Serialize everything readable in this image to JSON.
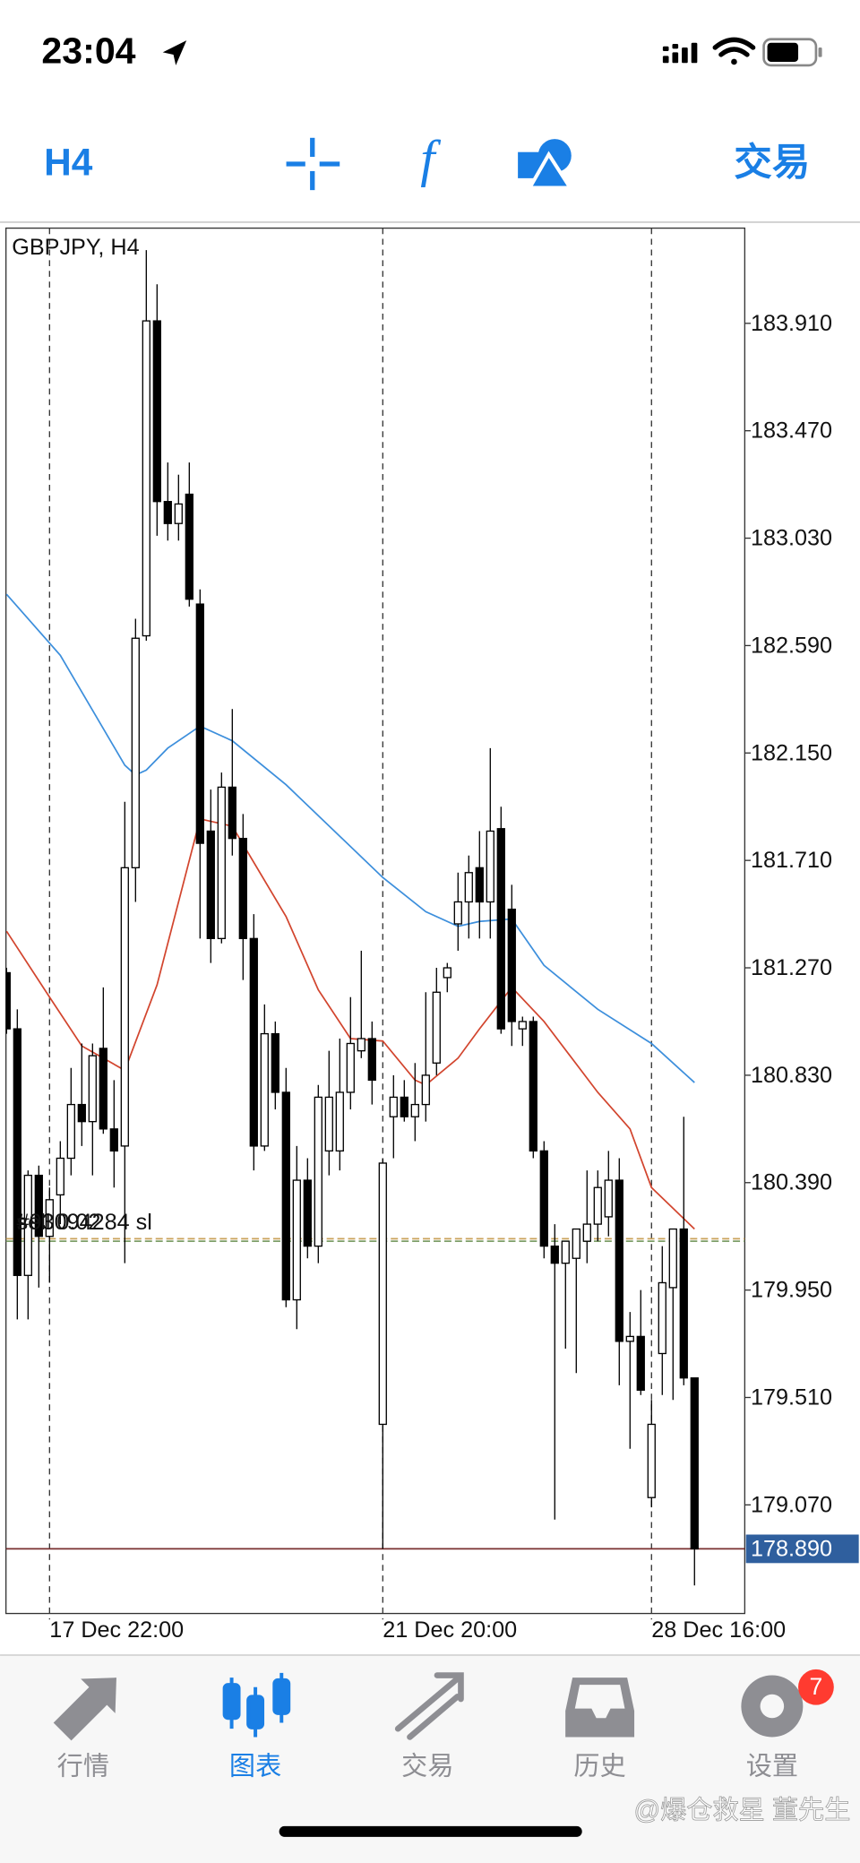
{
  "status_bar": {
    "time": "23:04"
  },
  "toolbar": {
    "timeframe": "H4",
    "trade": "交易"
  },
  "chart_data": {
    "type": "candlestick",
    "title": "GBPJPY, H4",
    "categories": [
      null,
      null,
      null,
      null,
      "17 Dec 22:00",
      null,
      null,
      null,
      null,
      null,
      null,
      null,
      null,
      null,
      null,
      null,
      null,
      null,
      null,
      null,
      null,
      null,
      null,
      null,
      null,
      null,
      null,
      null,
      null,
      null,
      null,
      null,
      null,
      null,
      null,
      "21 Dec 20:00",
      null,
      null,
      null,
      null,
      null,
      null,
      null,
      null,
      null,
      null,
      null,
      null,
      null,
      null,
      null,
      null,
      null,
      null,
      null,
      null,
      null,
      null,
      null,
      null,
      "28 Dec 16:00",
      null,
      null,
      null,
      null
    ],
    "open": [
      181.25,
      181.02,
      180.01,
      180.42,
      180.17,
      180.34,
      180.49,
      180.71,
      180.64,
      180.94,
      180.61,
      180.54,
      181.68,
      182.63,
      183.92,
      183.18,
      183.09,
      183.21,
      182.76,
      181.83,
      181.39,
      182.01,
      181.8,
      181.39,
      180.54,
      181.0,
      180.76,
      179.91,
      180.4,
      180.13,
      180.52,
      180.52,
      180.76,
      180.93,
      180.98,
      179.4,
      180.66,
      180.74,
      180.66,
      180.71,
      180.88,
      181.23,
      181.45,
      181.54,
      181.68,
      181.54,
      181.84,
      181.51,
      181.02,
      181.05,
      180.52,
      180.13,
      180.06,
      180.08,
      180.15,
      180.22,
      180.25,
      180.4,
      179.74,
      179.76,
      179.1,
      179.69,
      179.96,
      180.2,
      179.59
    ],
    "high": [
      181.27,
      181.1,
      180.44,
      180.46,
      180.37,
      180.56,
      180.86,
      180.96,
      180.96,
      181.19,
      180.81,
      181.95,
      182.7,
      184.21,
      184.07,
      183.34,
      183.29,
      183.34,
      182.82,
      182.0,
      182.07,
      182.33,
      181.9,
      181.49,
      181.12,
      181.05,
      180.86,
      180.54,
      180.49,
      180.79,
      180.93,
      180.98,
      181.15,
      181.34,
      181.05,
      180.49,
      180.83,
      180.81,
      180.88,
      181.17,
      181.27,
      181.29,
      181.66,
      181.73,
      181.83,
      182.17,
      181.93,
      181.61,
      181.07,
      181.07,
      180.56,
      180.22,
      180.15,
      180.2,
      180.44,
      180.44,
      180.52,
      180.49,
      179.86,
      179.95,
      179.5,
      180.13,
      180.2,
      180.66,
      179.59
    ],
    "low": [
      181.0,
      179.83,
      179.83,
      179.96,
      179.98,
      180.22,
      180.42,
      180.54,
      180.42,
      180.59,
      180.37,
      180.06,
      181.54,
      182.61,
      183.04,
      183.02,
      183.02,
      182.75,
      181.39,
      181.29,
      181.37,
      181.73,
      181.22,
      180.44,
      180.52,
      180.69,
      179.88,
      179.79,
      180.08,
      180.06,
      180.42,
      180.44,
      180.69,
      180.9,
      180.71,
      178.89,
      180.49,
      180.64,
      180.56,
      180.64,
      180.83,
      181.17,
      181.34,
      181.39,
      181.39,
      181.39,
      181.0,
      180.95,
      180.95,
      180.49,
      180.08,
      179.01,
      179.71,
      179.61,
      180.06,
      180.15,
      180.17,
      179.56,
      179.3,
      179.52,
      179.06,
      179.52,
      179.5,
      179.56,
      178.74
    ],
    "close": [
      181.02,
      180.01,
      180.42,
      180.17,
      180.32,
      180.49,
      180.71,
      180.64,
      180.91,
      180.61,
      180.52,
      181.68,
      182.62,
      183.92,
      183.18,
      183.09,
      183.17,
      182.78,
      181.78,
      181.39,
      182.01,
      181.8,
      181.39,
      180.54,
      181.0,
      180.76,
      179.91,
      180.4,
      180.13,
      180.74,
      180.74,
      180.76,
      180.96,
      180.98,
      180.81,
      180.47,
      180.74,
      180.66,
      180.71,
      180.83,
      181.17,
      181.27,
      181.54,
      181.66,
      181.54,
      181.83,
      181.02,
      181.05,
      181.05,
      180.52,
      180.13,
      180.06,
      180.15,
      180.2,
      180.22,
      180.37,
      180.4,
      179.74,
      179.76,
      179.54,
      179.4,
      179.98,
      180.2,
      179.59,
      178.89
    ],
    "up_color": "#ffffff",
    "down_color": "#000000",
    "series": [
      {
        "color": "#3d8fdc",
        "x": [
          0,
          5,
          11,
          12,
          13,
          15,
          18,
          21,
          26,
          35,
          39,
          42,
          44,
          47,
          50,
          55,
          60,
          64
        ],
        "values": [
          182.8,
          182.55,
          182.1,
          182.06,
          182.08,
          182.17,
          182.26,
          182.2,
          182.02,
          181.64,
          181.5,
          181.44,
          181.46,
          181.47,
          181.28,
          181.1,
          180.96,
          180.8
        ]
      },
      {
        "color": "#d2452e",
        "x": [
          0,
          4,
          7,
          11,
          14,
          18,
          21,
          26,
          29,
          32,
          35,
          38,
          39,
          42,
          44,
          47,
          50,
          55,
          58,
          60,
          64
        ],
        "values": [
          181.42,
          181.15,
          180.95,
          180.85,
          181.2,
          181.88,
          181.85,
          181.48,
          181.18,
          180.98,
          180.97,
          180.81,
          180.79,
          180.9,
          181.02,
          181.19,
          181.05,
          180.76,
          180.61,
          180.37,
          180.2
        ]
      }
    ],
    "ylim": [
      178.63,
      184.3
    ],
    "yticks": [
      {
        "value": 183.91,
        "label": "183.910"
      },
      {
        "value": 183.47,
        "label": "183.470"
      },
      {
        "value": 183.03,
        "label": "183.030"
      },
      {
        "value": 182.59,
        "label": "182.590"
      },
      {
        "value": 182.15,
        "label": "182.150"
      },
      {
        "value": 181.71,
        "label": "181.710"
      },
      {
        "value": 181.27,
        "label": "181.270"
      },
      {
        "value": 180.83,
        "label": "180.830"
      },
      {
        "value": 180.39,
        "label": "180.390"
      },
      {
        "value": 179.95,
        "label": "179.950"
      },
      {
        "value": 179.51,
        "label": "179.510"
      },
      {
        "value": 179.07,
        "label": "179.070"
      }
    ],
    "order_lines": [
      {
        "value": 180.16,
        "label": "#93094284 sl",
        "color": "#c9a25a"
      },
      {
        "value": 180.15,
        "label": "sell 0.02",
        "color": "#7f9f6a"
      }
    ],
    "price_line": {
      "value": 178.89,
      "label": "178.890",
      "color": "#7a3030",
      "label_bg": "#2f5f9e"
    }
  },
  "tab_bar": {
    "tabs": [
      "行情",
      "图表",
      "交易",
      "历史",
      "设置"
    ],
    "active": 1,
    "badge": "7"
  },
  "watermark": "@爆仓救星 董先生"
}
